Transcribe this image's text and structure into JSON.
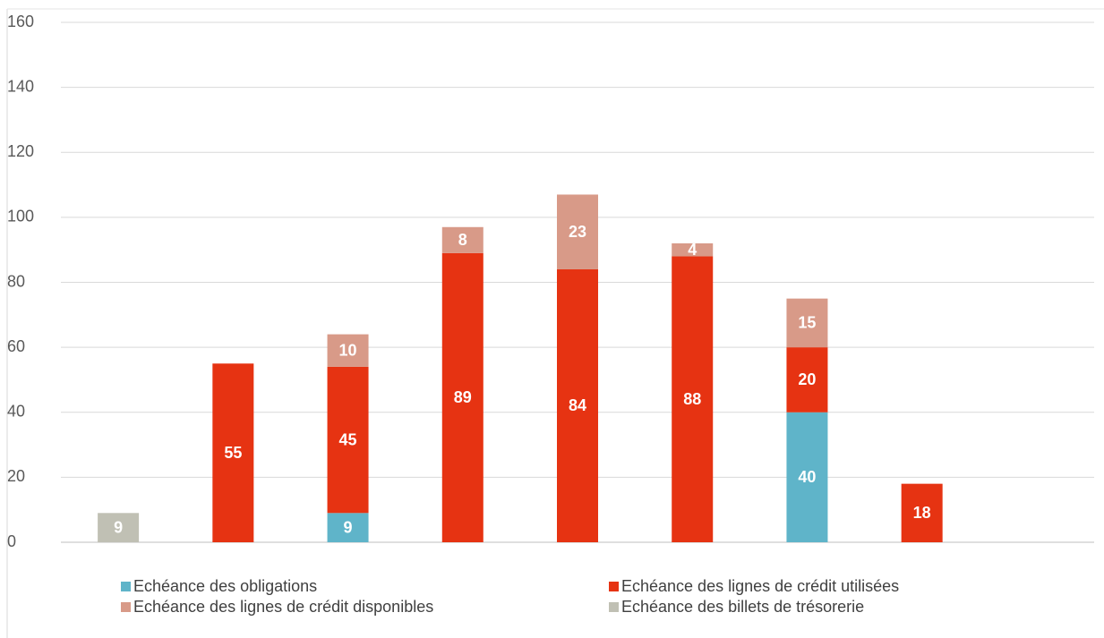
{
  "chart_data": {
    "type": "bar",
    "stacked": true,
    "categories": [
      null,
      null,
      null,
      null,
      null,
      null,
      null,
      null,
      null
    ],
    "series": [
      {
        "name": "Echéance des obligations",
        "color": "#5fb4c9",
        "values": [
          null,
          null,
          9,
          null,
          null,
          null,
          40,
          null,
          null
        ]
      },
      {
        "name": "Echéance des lignes de crédit utilisées",
        "color": "#e63312",
        "values": [
          null,
          55,
          45,
          89,
          84,
          88,
          20,
          18,
          null
        ]
      },
      {
        "name": "Echéance des lignes de crédit disponibles",
        "color": "#d89a88",
        "values": [
          null,
          null,
          10,
          8,
          23,
          4,
          15,
          null,
          null
        ]
      },
      {
        "name": "Echéance des billets de trésorerie",
        "color": "#c0c0b4",
        "values": [
          9,
          null,
          null,
          null,
          null,
          null,
          null,
          null,
          null
        ]
      }
    ],
    "ylim": [
      0,
      160
    ],
    "yticks": [
      0,
      20,
      40,
      60,
      80,
      100,
      120,
      140,
      160
    ],
    "grid": true,
    "legend": "bottom"
  }
}
